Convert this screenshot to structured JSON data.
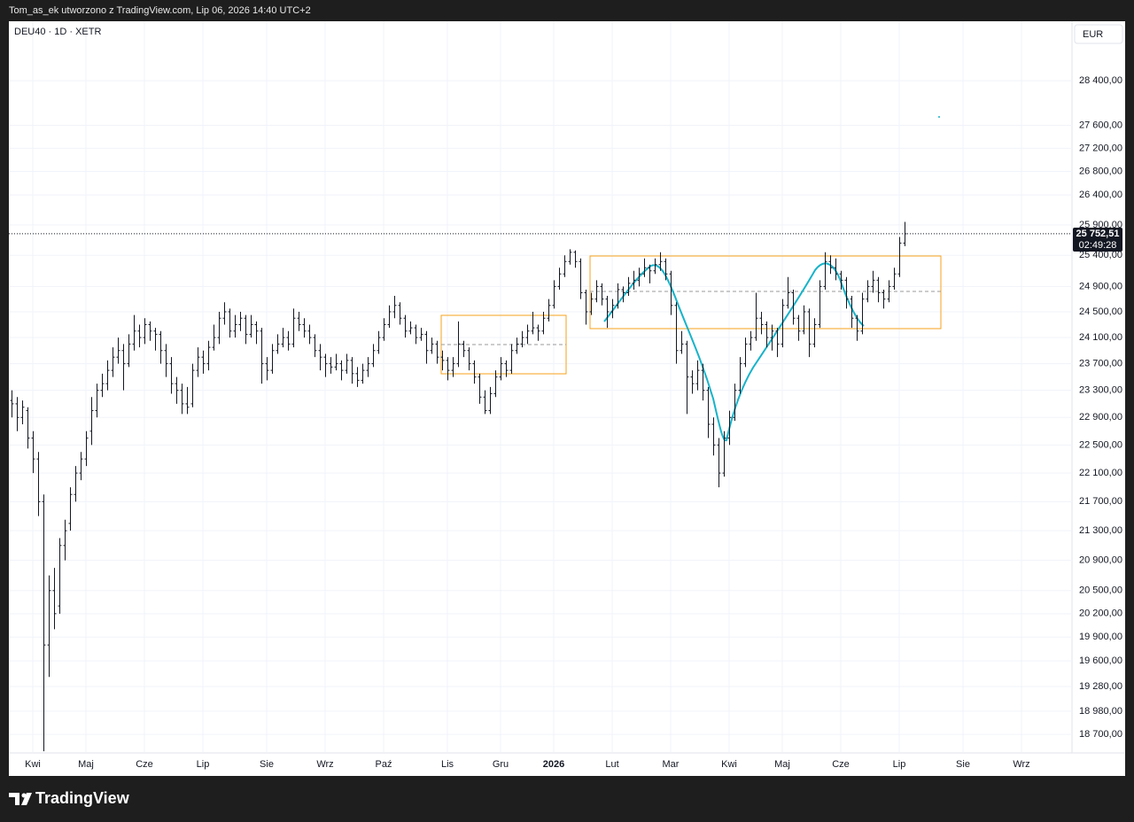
{
  "header": "Tom_as_ek utworzono z TradingView.com, Lip 06, 2026 14:40 UTC+2",
  "brand": "TradingView",
  "chart_data": {
    "type": "ohlc",
    "title": "DEU40 · 1D · XETR",
    "currency": "EUR",
    "log_scale": true,
    "grid": true,
    "color": "#131722",
    "ylim": [
      18480,
      29500
    ],
    "yticks": [
      {
        "value": 18700,
        "label": "18 700,00"
      },
      {
        "value": 18980,
        "label": "18 980,00"
      },
      {
        "value": 19280,
        "label": "19 280,00"
      },
      {
        "value": 19600,
        "label": "19 600,00"
      },
      {
        "value": 19900,
        "label": "19 900,00"
      },
      {
        "value": 20200,
        "label": "20 200,00"
      },
      {
        "value": 20500,
        "label": "20 500,00"
      },
      {
        "value": 20900,
        "label": "20 900,00"
      },
      {
        "value": 21300,
        "label": "21 300,00"
      },
      {
        "value": 21700,
        "label": "21 700,00"
      },
      {
        "value": 22100,
        "label": "22 100,00"
      },
      {
        "value": 22500,
        "label": "22 500,00"
      },
      {
        "value": 22900,
        "label": "22 900,00"
      },
      {
        "value": 23300,
        "label": "23 300,00"
      },
      {
        "value": 23700,
        "label": "23 700,00"
      },
      {
        "value": 24100,
        "label": "24 100,00"
      },
      {
        "value": 24500,
        "label": "24 500,00"
      },
      {
        "value": 24900,
        "label": "24 900,00"
      },
      {
        "value": 25400,
        "label": "25 400,00"
      },
      {
        "value": 25900,
        "label": "25 900,00"
      },
      {
        "value": 26400,
        "label": "26 400,00"
      },
      {
        "value": 26800,
        "label": "26 800,00"
      },
      {
        "value": 27200,
        "label": "27 200,00"
      },
      {
        "value": 27600,
        "label": "27 600,00"
      },
      {
        "value": 28400,
        "label": "28 400,00"
      }
    ],
    "last_price": {
      "value": 25752.51,
      "label": "25 752,51"
    },
    "countdown": "02:49:28",
    "categories": [
      null,
      null,
      null,
      null,
      "Kwi",
      null,
      null,
      null,
      null,
      null,
      null,
      null,
      null,
      null,
      "Maj",
      null,
      null,
      null,
      null,
      null,
      null,
      null,
      null,
      null,
      null,
      "Cze",
      null,
      null,
      null,
      null,
      null,
      null,
      null,
      null,
      null,
      null,
      "Lip",
      null,
      null,
      null,
      null,
      null,
      null,
      null,
      null,
      null,
      null,
      null,
      "Sie",
      null,
      null,
      null,
      null,
      null,
      null,
      null,
      null,
      null,
      null,
      "Wrz",
      null,
      null,
      null,
      null,
      null,
      null,
      null,
      null,
      null,
      null,
      "Paź",
      null,
      null,
      null,
      null,
      null,
      null,
      null,
      null,
      null,
      null,
      null,
      "Lis",
      null,
      null,
      null,
      null,
      null,
      null,
      null,
      null,
      null,
      "Gru",
      null,
      null,
      null,
      null,
      null,
      null,
      null,
      null,
      null,
      "2026",
      null,
      null,
      null,
      null,
      null,
      null,
      null,
      null,
      null,
      null,
      "Lut",
      null,
      null,
      null,
      null,
      null,
      null,
      null,
      null,
      null,
      null,
      "Mar",
      null,
      null,
      null,
      null,
      null,
      null,
      null,
      null,
      null,
      null,
      "Kwi",
      null,
      null,
      null,
      null,
      null,
      null,
      null,
      null,
      null,
      "Maj",
      null,
      null,
      null,
      null,
      null,
      null,
      null,
      null,
      null,
      null,
      "Cze",
      null,
      null,
      null,
      null,
      null,
      null,
      null,
      null,
      null,
      null,
      "Lip",
      null,
      null,
      null,
      null,
      null,
      null,
      null,
      null,
      null,
      null,
      null,
      "Sie",
      null,
      null,
      null,
      null,
      null,
      null,
      null,
      null,
      null,
      null,
      "Wrz",
      null,
      null,
      null,
      null,
      null,
      null,
      null,
      null,
      null
    ],
    "ohlc": [
      [
        23150,
        23300,
        22900,
        23100
      ],
      [
        23100,
        23200,
        22700,
        22900
      ],
      [
        22900,
        23150,
        22800,
        23050
      ],
      [
        23000,
        23050,
        22450,
        22600
      ],
      [
        22600,
        22700,
        22100,
        22300
      ],
      [
        22300,
        22400,
        21500,
        21700
      ],
      [
        21700,
        21800,
        18500,
        19800
      ],
      [
        19800,
        20700,
        19400,
        20500
      ],
      [
        20500,
        20800,
        20000,
        20200
      ],
      [
        20300,
        21200,
        20200,
        21100
      ],
      [
        21100,
        21450,
        20900,
        21300
      ],
      [
        21400,
        21900,
        21300,
        21800
      ],
      [
        21800,
        22200,
        21700,
        22100
      ],
      [
        22100,
        22400,
        22000,
        22300
      ],
      [
        22300,
        22700,
        22200,
        22600
      ],
      [
        22700,
        23200,
        22500,
        23000
      ],
      [
        23000,
        23400,
        22900,
        23300
      ],
      [
        23300,
        23550,
        23200,
        23400
      ],
      [
        23400,
        23750,
        23300,
        23600
      ],
      [
        23600,
        23950,
        23500,
        23800
      ],
      [
        23800,
        24100,
        23700,
        23900
      ],
      [
        23900,
        24000,
        23300,
        23700
      ],
      [
        23700,
        24150,
        23650,
        24000
      ],
      [
        24000,
        24450,
        23900,
        24200
      ],
      [
        24200,
        24300,
        23950,
        24100
      ],
      [
        24100,
        24400,
        24000,
        24300
      ],
      [
        24300,
        24350,
        24050,
        24200
      ],
      [
        24200,
        24250,
        23900,
        24150
      ],
      [
        24150,
        24200,
        23700,
        23900
      ],
      [
        23900,
        24000,
        23500,
        23700
      ],
      [
        23700,
        23800,
        23250,
        23400
      ],
      [
        23400,
        23500,
        23100,
        23300
      ],
      [
        23300,
        23400,
        22950,
        23100
      ],
      [
        23100,
        23350,
        22950,
        23050
      ],
      [
        23100,
        23700,
        23050,
        23600
      ],
      [
        23600,
        23950,
        23500,
        23800
      ],
      [
        23800,
        23900,
        23550,
        23700
      ],
      [
        23700,
        24050,
        23600,
        23950
      ],
      [
        23950,
        24300,
        23900,
        24100
      ],
      [
        24100,
        24500,
        24000,
        24400
      ],
      [
        24400,
        24650,
        24300,
        24500
      ],
      [
        24500,
        24550,
        24100,
        24200
      ],
      [
        24200,
        24450,
        24100,
        24300
      ],
      [
        24300,
        24500,
        24200,
        24400
      ],
      [
        24400,
        24450,
        24000,
        24150
      ],
      [
        24150,
        24450,
        24100,
        24300
      ],
      [
        24300,
        24350,
        24000,
        24200
      ],
      [
        24200,
        24250,
        23400,
        23700
      ],
      [
        23700,
        23800,
        23450,
        23600
      ],
      [
        23600,
        24000,
        23550,
        23900
      ],
      [
        23900,
        24150,
        23850,
        24000
      ],
      [
        24000,
        24250,
        23950,
        24100
      ],
      [
        24100,
        24200,
        23900,
        24000
      ],
      [
        24000,
        24550,
        23950,
        24400
      ],
      [
        24400,
        24500,
        24200,
        24300
      ],
      [
        24300,
        24400,
        24100,
        24200
      ],
      [
        24200,
        24300,
        24000,
        24100
      ],
      [
        24100,
        24150,
        23800,
        23900
      ],
      [
        23900,
        24000,
        23600,
        23800
      ],
      [
        23800,
        23850,
        23500,
        23700
      ],
      [
        23700,
        23800,
        23550,
        23650
      ],
      [
        23650,
        23850,
        23600,
        23700
      ],
      [
        23700,
        23750,
        23450,
        23600
      ],
      [
        23600,
        23850,
        23550,
        23750
      ],
      [
        23750,
        23800,
        23400,
        23550
      ],
      [
        23550,
        23650,
        23350,
        23450
      ],
      [
        23450,
        23700,
        23400,
        23600
      ],
      [
        23600,
        23800,
        23500,
        23700
      ],
      [
        23700,
        24000,
        23650,
        23900
      ],
      [
        23900,
        24200,
        23850,
        24100
      ],
      [
        24100,
        24400,
        24050,
        24300
      ],
      [
        24300,
        24600,
        24250,
        24500
      ],
      [
        24500,
        24750,
        24400,
        24600
      ],
      [
        24600,
        24650,
        24300,
        24400
      ],
      [
        24400,
        24450,
        24100,
        24200
      ],
      [
        24200,
        24350,
        24150,
        24250
      ],
      [
        24250,
        24300,
        24000,
        24100
      ],
      [
        24100,
        24250,
        24050,
        24150
      ],
      [
        24150,
        24200,
        23700,
        23900
      ],
      [
        23900,
        24100,
        23850,
        24000
      ],
      [
        24000,
        24050,
        23700,
        23800
      ],
      [
        23800,
        23900,
        23600,
        23750
      ],
      [
        23750,
        23800,
        23450,
        23600
      ],
      [
        23600,
        23800,
        23500,
        23700
      ],
      [
        23700,
        24350,
        23650,
        24000
      ],
      [
        24000,
        24050,
        23800,
        23900
      ],
      [
        23900,
        23950,
        23600,
        23700
      ],
      [
        23700,
        23750,
        23400,
        23500
      ],
      [
        23500,
        23550,
        23100,
        23200
      ],
      [
        23200,
        23300,
        22950,
        23000
      ],
      [
        23000,
        23350,
        22950,
        23250
      ],
      [
        23250,
        23600,
        23200,
        23500
      ],
      [
        23500,
        23800,
        23450,
        23700
      ],
      [
        23700,
        23750,
        23500,
        23600
      ],
      [
        23600,
        24000,
        23550,
        23900
      ],
      [
        23900,
        24100,
        23850,
        24000
      ],
      [
        24000,
        24200,
        23950,
        24100
      ],
      [
        24100,
        24300,
        24000,
        24200
      ],
      [
        24200,
        24500,
        24150,
        24250
      ],
      [
        24250,
        24300,
        24050,
        24200
      ],
      [
        24200,
        24500,
        24150,
        24400
      ],
      [
        24400,
        24700,
        24350,
        24600
      ],
      [
        24600,
        25000,
        24550,
        24900
      ],
      [
        24900,
        25200,
        24850,
        25100
      ],
      [
        25100,
        25400,
        25050,
        25300
      ],
      [
        25300,
        25500,
        25250,
        25450
      ],
      [
        25450,
        25480,
        25200,
        25300
      ],
      [
        25300,
        25350,
        24700,
        24800
      ],
      [
        24800,
        24850,
        24300,
        24500
      ],
      [
        24500,
        24800,
        24450,
        24700
      ],
      [
        24700,
        25000,
        24650,
        24900
      ],
      [
        24900,
        24950,
        24600,
        24700
      ],
      [
        24700,
        24750,
        24250,
        24500
      ],
      [
        24500,
        24700,
        24400,
        24600
      ],
      [
        24600,
        24950,
        24550,
        24850
      ],
      [
        24850,
        24900,
        24650,
        24800
      ],
      [
        24800,
        25050,
        24750,
        24950
      ],
      [
        24950,
        25150,
        24850,
        25000
      ],
      [
        25000,
        25200,
        24900,
        25100
      ],
      [
        25100,
        25350,
        25050,
        25200
      ],
      [
        25200,
        25250,
        24950,
        25150
      ],
      [
        25150,
        25350,
        25100,
        25250
      ],
      [
        25250,
        25450,
        25150,
        25300
      ],
      [
        25300,
        25350,
        25000,
        25100
      ],
      [
        25100,
        25150,
        24450,
        24600
      ],
      [
        24600,
        24650,
        23700,
        23900
      ],
      [
        23900,
        24200,
        23850,
        24000
      ],
      [
        24000,
        24050,
        22950,
        23500
      ],
      [
        23500,
        23600,
        23250,
        23400
      ],
      [
        23400,
        23750,
        23300,
        23600
      ],
      [
        23600,
        23700,
        23150,
        23300
      ],
      [
        23300,
        23350,
        22600,
        22800
      ],
      [
        22800,
        22900,
        22350,
        22500
      ],
      [
        22500,
        22600,
        21900,
        22100
      ],
      [
        22100,
        22700,
        22050,
        22600
      ],
      [
        22600,
        23000,
        22500,
        22900
      ],
      [
        22900,
        23400,
        22850,
        23300
      ],
      [
        23300,
        23800,
        23250,
        23700
      ],
      [
        23700,
        24100,
        23650,
        24000
      ],
      [
        24000,
        24200,
        23900,
        24100
      ],
      [
        24100,
        24800,
        24050,
        24400
      ],
      [
        24400,
        24500,
        24150,
        24300
      ],
      [
        24300,
        24350,
        23950,
        24100
      ],
      [
        24100,
        24300,
        23900,
        24200
      ],
      [
        24200,
        24250,
        23800,
        24000
      ],
      [
        24000,
        24700,
        23950,
        24600
      ],
      [
        24600,
        25050,
        24550,
        24800
      ],
      [
        24800,
        24850,
        24300,
        24400
      ],
      [
        24400,
        24450,
        24050,
        24200
      ],
      [
        24200,
        24600,
        24150,
        24500
      ],
      [
        24500,
        24550,
        23800,
        24000
      ],
      [
        24000,
        24400,
        23950,
        24300
      ],
      [
        24300,
        25000,
        24250,
        24900
      ],
      [
        24900,
        25450,
        24850,
        25300
      ],
      [
        25300,
        25400,
        25100,
        25200
      ],
      [
        25200,
        25350,
        25000,
        25100
      ],
      [
        25100,
        25150,
        24850,
        25000
      ],
      [
        25000,
        25050,
        24550,
        24700
      ],
      [
        24700,
        24750,
        24250,
        24400
      ],
      [
        24400,
        24450,
        24050,
        24200
      ],
      [
        24200,
        24800,
        24150,
        24700
      ],
      [
        24700,
        25000,
        24650,
        24900
      ],
      [
        24900,
        25150,
        24800,
        25000
      ],
      [
        25000,
        25050,
        24650,
        24800
      ],
      [
        24800,
        24850,
        24550,
        24700
      ],
      [
        24700,
        25000,
        24650,
        24900
      ],
      [
        24900,
        25200,
        24850,
        25100
      ],
      [
        25100,
        25700,
        25050,
        25600
      ],
      [
        25600,
        25950,
        25550,
        25752.51
      ],
      null,
      null,
      null,
      null,
      null,
      null,
      null,
      null,
      null,
      null,
      null,
      null,
      null,
      null,
      null,
      null,
      null,
      null,
      null,
      null,
      null,
      null,
      null,
      null,
      null,
      null,
      null,
      null,
      null,
      null,
      null
    ]
  }
}
